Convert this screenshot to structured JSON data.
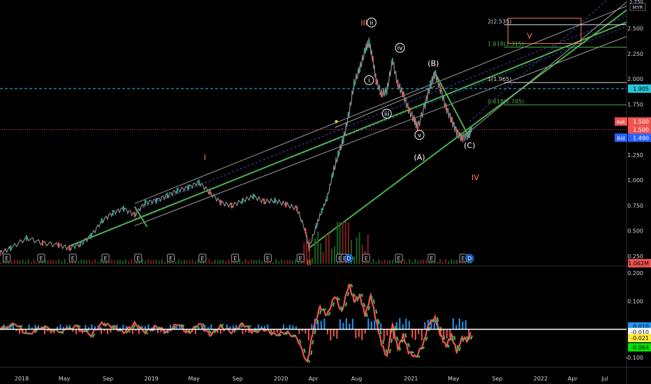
{
  "chart_data": [
    {
      "type": "line",
      "description_panel": "price",
      "y_axis": {
        "unit_label": "MYR",
        "ticks": [
          0.25,
          0.5,
          0.75,
          1.0,
          1.25,
          1.5,
          1.75,
          2.0,
          2.25,
          2.5
        ],
        "tick_labels": [
          "0.250",
          "0.500",
          "0.750",
          "1.000",
          "1.250",
          "1.500",
          "1.750",
          "2.000",
          "2.250",
          "2.500"
        ],
        "top_label": "2.750",
        "ylim": [
          0.16,
          2.78
        ]
      },
      "x_axis": {
        "tick_labels": [
          "2018",
          "May",
          "Sep",
          "2019",
          "May",
          "Sep",
          "2020",
          "Apr",
          "Aug",
          "2021",
          "May",
          "Sep",
          "2022",
          "Apr",
          "Jul"
        ],
        "tick_dates": [
          "2018-01-01",
          "2018-05-01",
          "2018-09-01",
          "2019-01-01",
          "2019-05-01",
          "2019-09-01",
          "2020-01-01",
          "2020-04-01",
          "2020-08-01",
          "2021-01-01",
          "2021-05-01",
          "2021-09-01",
          "2022-01-01",
          "2022-04-01",
          "2022-07-01"
        ]
      },
      "series": [
        {
          "values_by_date": [
            [
              "2017-11-01",
              0.28
            ],
            [
              "2017-12-01",
              0.33
            ],
            [
              "2018-01-15",
              0.43
            ],
            [
              "2018-03-01",
              0.38
            ],
            [
              "2018-04-15",
              0.36
            ],
            [
              "2018-05-15",
              0.33
            ],
            [
              "2018-06-15",
              0.37
            ],
            [
              "2018-07-15",
              0.45
            ],
            [
              "2018-08-15",
              0.6
            ],
            [
              "2018-09-15",
              0.68
            ],
            [
              "2018-10-15",
              0.72
            ],
            [
              "2018-11-15",
              0.66
            ],
            [
              "2018-12-15",
              0.78
            ],
            [
              "2019-01-15",
              0.8
            ],
            [
              "2019-02-15",
              0.85
            ],
            [
              "2019-03-15",
              0.9
            ],
            [
              "2019-04-15",
              0.93
            ],
            [
              "2019-05-15",
              0.98
            ],
            [
              "2019-06-15",
              0.88
            ],
            [
              "2019-07-15",
              0.78
            ],
            [
              "2019-08-15",
              0.75
            ],
            [
              "2019-09-15",
              0.8
            ],
            [
              "2019-10-15",
              0.84
            ],
            [
              "2019-11-15",
              0.79
            ],
            [
              "2019-12-15",
              0.8
            ],
            [
              "2020-01-15",
              0.76
            ],
            [
              "2020-02-15",
              0.72
            ],
            [
              "2020-03-10",
              0.5
            ],
            [
              "2020-03-20",
              0.33
            ],
            [
              "2020-04-10",
              0.55
            ],
            [
              "2020-04-25",
              0.7
            ],
            [
              "2020-05-10",
              0.82
            ],
            [
              "2020-05-25",
              1.05
            ],
            [
              "2020-06-10",
              1.25
            ],
            [
              "2020-06-25",
              1.4
            ],
            [
              "2020-07-10",
              1.65
            ],
            [
              "2020-07-25",
              1.95
            ],
            [
              "2020-08-10",
              2.1
            ],
            [
              "2020-08-25",
              2.28
            ],
            [
              "2020-09-05",
              2.36
            ],
            [
              "2020-09-15",
              2.2
            ],
            [
              "2020-09-25",
              1.98
            ],
            [
              "2020-10-10",
              1.85
            ],
            [
              "2020-10-25",
              1.88
            ],
            [
              "2020-11-10",
              2.18
            ],
            [
              "2020-11-25",
              1.95
            ],
            [
              "2020-12-10",
              1.85
            ],
            [
              "2020-12-25",
              1.7
            ],
            [
              "2021-01-10",
              1.6
            ],
            [
              "2021-01-20",
              1.52
            ],
            [
              "2021-02-10",
              1.75
            ],
            [
              "2021-02-25",
              1.95
            ],
            [
              "2021-03-10",
              2.06
            ],
            [
              "2021-03-25",
              1.9
            ],
            [
              "2021-04-10",
              1.72
            ],
            [
              "2021-04-25",
              1.6
            ],
            [
              "2021-05-10",
              1.48
            ],
            [
              "2021-05-25",
              1.42
            ],
            [
              "2021-06-10",
              1.45
            ],
            [
              "2021-06-20",
              1.5
            ]
          ]
        }
      ],
      "price_labels": {
        "ask_label": "Ask",
        "ask_value": "1.500",
        "last_value": "1.500",
        "bid_label": "Bid",
        "bid_value": "1.490",
        "dashed_level_value": "1.905",
        "volume_value": "1.062M"
      },
      "fib_levels": [
        {
          "label": "2(2.535)",
          "value": 2.535,
          "color": "#d1d4dc"
        },
        {
          "label": "1.618(2.315)",
          "value": 2.315,
          "color": "#4caf50"
        },
        {
          "label": "1(1.965)",
          "value": 1.965,
          "color": "#d1d4dc"
        },
        {
          "label": "0.618(1.745)",
          "value": 1.745,
          "color": "#4caf50"
        }
      ],
      "wave_labels": [
        {
          "text": "I",
          "date": "2019-06-01",
          "value": 1.2,
          "color": "#ff7f50"
        },
        {
          "text": "II",
          "date": "2020-03-20",
          "value": 0.16,
          "color": "#ff7f50"
        },
        {
          "text": "III",
          "date": "2020-08-22",
          "value": 2.53,
          "color": "#ff7f50"
        },
        {
          "text": "IV",
          "date": "2021-07-01",
          "value": 1.0,
          "color": "#ff7f50"
        },
        {
          "text": "V",
          "date": "2021-12-01",
          "value": 2.4,
          "color": "#ff7f50"
        },
        {
          "text": "i",
          "date": "2020-09-05",
          "value": 1.96,
          "color": "#ffffff",
          "circled": true
        },
        {
          "text": "ii",
          "date": "2020-09-12",
          "value": 2.53,
          "color": "#ffffff",
          "circled": true
        },
        {
          "text": "iii",
          "date": "2020-10-25",
          "value": 1.63,
          "color": "#ffffff",
          "circled": true
        },
        {
          "text": "iv",
          "date": "2020-12-01",
          "value": 2.28,
          "color": "#ffffff",
          "circled": true
        },
        {
          "text": "v",
          "date": "2021-01-25",
          "value": 1.42,
          "color": "#ffffff",
          "circled": true
        },
        {
          "text": "(A)",
          "date": "2021-01-25",
          "value": 1.2,
          "color": "#ffffff"
        },
        {
          "text": "(B)",
          "date": "2021-03-05",
          "value": 2.13,
          "color": "#ffffff"
        },
        {
          "text": "(C)",
          "date": "2021-06-15",
          "value": 1.32,
          "color": "#ffffff"
        }
      ],
      "event_markers": {
        "earnings_letter": "E",
        "dividend_letter": "D",
        "earnings_dates": [
          "2017-11-20",
          "2018-02-25",
          "2018-05-25",
          "2018-08-25",
          "2018-11-25",
          "2019-02-25",
          "2019-05-25",
          "2019-08-25",
          "2019-11-25",
          "2020-02-25",
          "2020-06-15",
          "2020-06-28",
          "2020-08-28",
          "2020-11-28",
          "2021-02-28",
          "2021-05-28"
        ],
        "dividend_dates": [
          "2020-07-10",
          "2021-06-15"
        ]
      }
    },
    {
      "type": "line",
      "description_panel": "oscillator",
      "y_axis": {
        "ticks": [
          0.2,
          0.1,
          -0.1
        ],
        "tick_labels": [
          "0.200",
          "0.100",
          "-0.100"
        ],
        "ylim": [
          -0.125,
          0.215
        ]
      },
      "value_labels": [
        {
          "text": "0.010",
          "bg": "#2196f3",
          "fg": "#000000"
        },
        {
          "text": "-0.010",
          "bg": "#ffffff",
          "fg": "#000000"
        },
        {
          "text": "-0.021",
          "bg": "#ffeb3b",
          "fg": "#000000"
        },
        {
          "text": "-0.064",
          "bg": "#00e600",
          "fg": "#000000"
        }
      ],
      "series": [
        {
          "name": "",
          "values_by_date": [
            [
              "2017-11-01",
              0.0
            ],
            [
              "2017-12-15",
              0.02
            ],
            [
              "2018-01-15",
              -0.02
            ],
            [
              "2018-03-01",
              0.01
            ],
            [
              "2018-04-15",
              -0.01
            ],
            [
              "2018-06-01",
              0.01
            ],
            [
              "2018-07-15",
              -0.02
            ],
            [
              "2018-08-15",
              0.02
            ],
            [
              "2018-09-15",
              0.01
            ],
            [
              "2018-10-15",
              -0.01
            ],
            [
              "2018-11-15",
              0.02
            ],
            [
              "2018-12-15",
              -0.01
            ],
            [
              "2019-01-15",
              0.01
            ],
            [
              "2019-02-15",
              -0.01
            ],
            [
              "2019-03-15",
              0.02
            ],
            [
              "2019-04-15",
              -0.015
            ],
            [
              "2019-05-15",
              0.02
            ],
            [
              "2019-06-15",
              -0.02
            ],
            [
              "2019-07-15",
              0.01
            ],
            [
              "2019-08-15",
              -0.01
            ],
            [
              "2019-09-15",
              0.02
            ],
            [
              "2019-10-15",
              -0.01
            ],
            [
              "2019-11-15",
              0.0
            ],
            [
              "2019-12-15",
              -0.02
            ],
            [
              "2020-01-15",
              -0.01
            ],
            [
              "2020-02-15",
              -0.03
            ],
            [
              "2020-03-15",
              -0.12
            ],
            [
              "2020-04-01",
              0.0
            ],
            [
              "2020-04-20",
              0.08
            ],
            [
              "2020-05-10",
              0.05
            ],
            [
              "2020-06-01",
              0.12
            ],
            [
              "2020-06-20",
              0.06
            ],
            [
              "2020-07-10",
              0.16
            ],
            [
              "2020-07-25",
              0.1
            ],
            [
              "2020-08-10",
              0.12
            ],
            [
              "2020-08-25",
              0.05
            ],
            [
              "2020-09-10",
              0.12
            ],
            [
              "2020-09-25",
              0.03
            ],
            [
              "2020-10-10",
              -0.05
            ],
            [
              "2020-10-25",
              -0.1
            ],
            [
              "2020-11-10",
              0.02
            ],
            [
              "2020-11-25",
              -0.07
            ],
            [
              "2020-12-10",
              -0.02
            ],
            [
              "2020-12-25",
              -0.08
            ],
            [
              "2021-01-15",
              -0.1
            ],
            [
              "2021-02-05",
              -0.05
            ],
            [
              "2021-02-20",
              0.02
            ],
            [
              "2021-03-10",
              0.04
            ],
            [
              "2021-03-25",
              -0.02
            ],
            [
              "2021-04-10",
              -0.06
            ],
            [
              "2021-04-25",
              -0.02
            ],
            [
              "2021-05-10",
              -0.08
            ],
            [
              "2021-05-25",
              -0.03
            ],
            [
              "2021-06-10",
              -0.04
            ],
            [
              "2021-06-20",
              -0.01
            ]
          ]
        }
      ]
    }
  ]
}
